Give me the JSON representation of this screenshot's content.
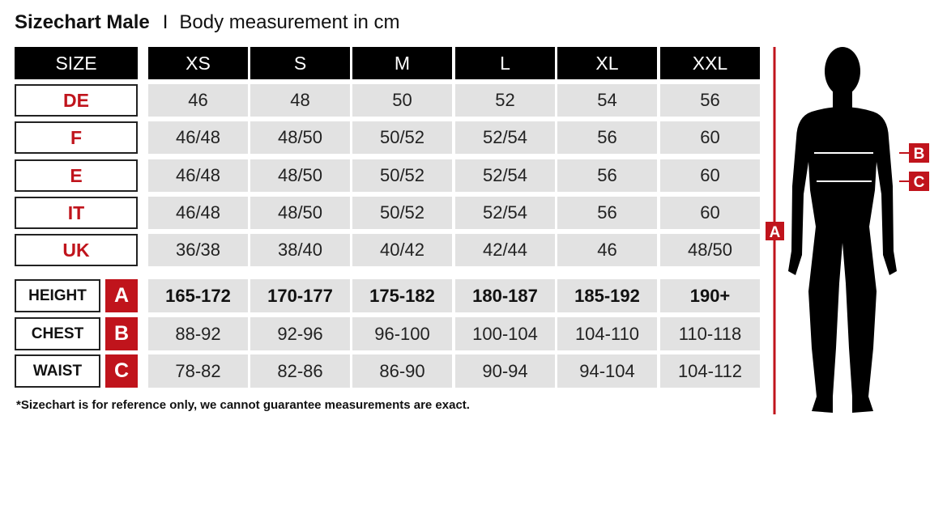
{
  "title": {
    "main": "Sizechart Male",
    "separator": "I",
    "sub": "Body measurement in cm"
  },
  "header": {
    "label": "SIZE",
    "sizes": [
      "XS",
      "S",
      "M",
      "L",
      "XL",
      "XXL"
    ]
  },
  "size_rows": [
    {
      "label": "DE",
      "values": [
        "46",
        "48",
        "50",
        "52",
        "54",
        "56"
      ]
    },
    {
      "label": "F",
      "values": [
        "46/48",
        "48/50",
        "50/52",
        "52/54",
        "56",
        "60"
      ]
    },
    {
      "label": "E",
      "values": [
        "46/48",
        "48/50",
        "50/52",
        "52/54",
        "56",
        "60"
      ]
    },
    {
      "label": "IT",
      "values": [
        "46/48",
        "48/50",
        "50/52",
        "52/54",
        "56",
        "60"
      ]
    },
    {
      "label": "UK",
      "values": [
        "36/38",
        "38/40",
        "40/42",
        "42/44",
        "46",
        "48/50"
      ]
    }
  ],
  "measure_rows": [
    {
      "label": "HEIGHT",
      "letter": "A",
      "values": [
        "165-172",
        "170-177",
        "175-182",
        "180-187",
        "185-192",
        "190+"
      ]
    },
    {
      "label": "CHEST",
      "letter": "B",
      "values": [
        "88-92",
        "92-96",
        "96-100",
        "100-104",
        "104-110",
        "110-118"
      ]
    },
    {
      "label": "WAIST",
      "letter": "C",
      "values": [
        "78-82",
        "82-86",
        "86-90",
        "90-94",
        "94-104",
        "104-112"
      ]
    }
  ],
  "note": "*Sizechart is for reference only, we cannot guarantee measurements are exact.",
  "figure": {
    "labels": {
      "height": "A",
      "chest": "B",
      "waist": "C"
    }
  },
  "colors": {
    "accent": "#c0141c",
    "header": "#000000",
    "cell": "#e2e2e2"
  }
}
